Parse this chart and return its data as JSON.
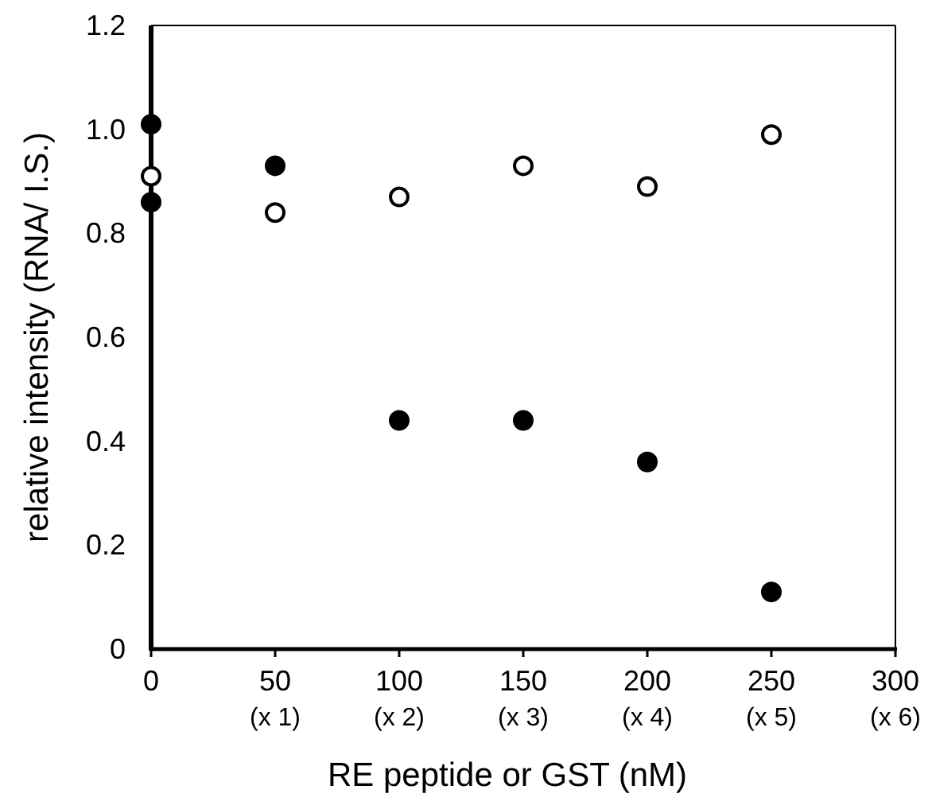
{
  "chart_data": {
    "type": "scatter",
    "xlabel": "RE peptide or GST (nM)",
    "ylabel": "relative intensity (RNA/ I.S.)",
    "xlim": [
      0,
      300
    ],
    "ylim": [
      0,
      1.2
    ],
    "xticks": [
      0,
      50,
      100,
      150,
      200,
      250,
      300
    ],
    "yticks": [
      0,
      0.2,
      0.4,
      0.6,
      0.8,
      {
        "value": 1,
        "label": "1.0"
      },
      1.2
    ],
    "annotations": [
      "(x 1)",
      "(x 2)",
      "(x 3)",
      "(x 4)",
      "(x 5)",
      "(x 6)"
    ],
    "marker": "circle",
    "series": [
      {
        "color": "#000000",
        "x": [
          0,
          0,
          50,
          100,
          150,
          200,
          250
        ],
        "values": [
          1.01,
          0.86,
          0.93,
          0.44,
          0.44,
          0.36,
          0.11
        ]
      },
      {
        "color": "#ffffff",
        "x": [
          0,
          50,
          100,
          150,
          200,
          250
        ],
        "values": [
          0.91,
          0.84,
          0.87,
          0.93,
          0.89,
          0.99
        ]
      }
    ]
  }
}
